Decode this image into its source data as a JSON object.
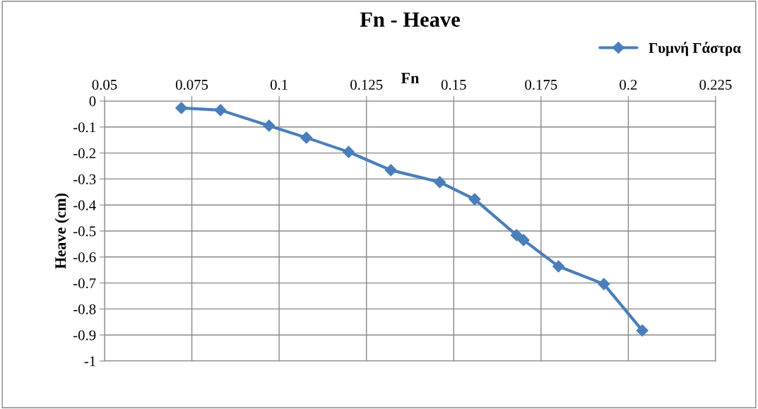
{
  "chart_data": {
    "type": "line",
    "title": "Fn - Heave",
    "xlabel": "Fn",
    "ylabel": "Heave (cm)",
    "x": [
      0.072,
      0.0832,
      0.0971,
      0.1078,
      0.1199,
      0.132,
      0.146,
      0.156,
      0.168,
      0.17,
      0.18,
      0.193,
      0.204
    ],
    "series": [
      {
        "name": "Γυμνή Γάστρα",
        "color": "#4a7ebb",
        "values": [
          -0.027,
          -0.035,
          -0.095,
          -0.141,
          -0.196,
          -0.266,
          -0.312,
          -0.378,
          -0.516,
          -0.535,
          -0.636,
          -0.704,
          -0.883
        ]
      }
    ],
    "xlim": [
      0.05,
      0.225
    ],
    "xticks": [
      0.05,
      0.075,
      0.1,
      0.125,
      0.15,
      0.175,
      0.2,
      0.225
    ],
    "ylim": [
      -1,
      0
    ],
    "yticks": [
      0,
      -0.1,
      -0.2,
      -0.3,
      -0.4,
      -0.5,
      -0.6,
      -0.7,
      -0.8,
      -0.9,
      -1
    ],
    "grid": true,
    "legend": "top right",
    "marker": "diamond",
    "line_style": "solid"
  }
}
